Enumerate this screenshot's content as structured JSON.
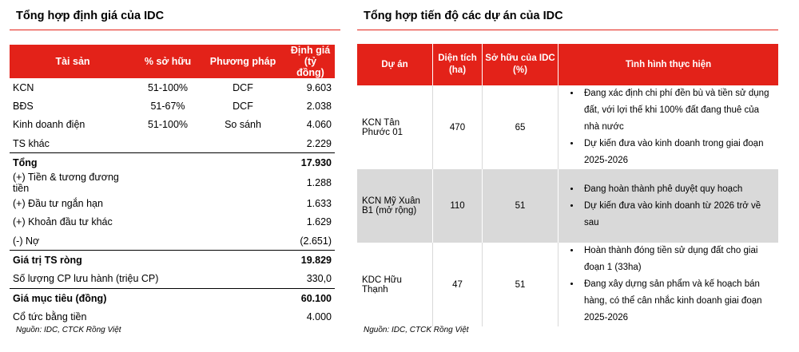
{
  "left": {
    "title": "Tổng hợp định giá của IDC",
    "headers": [
      "Tài sản",
      "% sở hữu",
      "Phương pháp",
      "Định giá (tỷ đồng)"
    ],
    "rows": [
      {
        "asset": "KCN",
        "own": "51-100%",
        "method": "DCF",
        "value": "9.603"
      },
      {
        "asset": "BĐS",
        "own": "51-67%",
        "method": "DCF",
        "value": "2.038"
      },
      {
        "asset": "Kinh doanh điện",
        "own": "51-100%",
        "method": "So sánh",
        "value": "4.060"
      },
      {
        "asset": "TS khác",
        "own": "",
        "method": "",
        "value": "2.229"
      },
      {
        "asset": "Tổng",
        "own": "",
        "method": "",
        "value": "17.930"
      },
      {
        "asset": "(+) Tiền & tương đương tiền",
        "own": "",
        "method": "",
        "value": "1.288"
      },
      {
        "asset": "(+) Đầu tư ngắn hạn",
        "own": "",
        "method": "",
        "value": "1.633"
      },
      {
        "asset": "(+) Khoản đầu tư khác",
        "own": "",
        "method": "",
        "value": "1.629"
      },
      {
        "asset": "(-) Nợ",
        "own": "",
        "method": "",
        "value": "(2.651)"
      },
      {
        "asset": "Giá trị TS ròng",
        "own": "",
        "method": "",
        "value": "19.829"
      },
      {
        "asset": "Số lượng CP lưu hành (triệu CP)",
        "own": "",
        "method": "",
        "value": "330,0"
      },
      {
        "asset": "Giá mục tiêu (đồng)",
        "own": "",
        "method": "",
        "value": "60.100"
      },
      {
        "asset": "Cổ tức bằng tiền",
        "own": "",
        "method": "",
        "value": "4.000"
      }
    ],
    "source": "Nguồn: IDC, CTCK Rồng Việt"
  },
  "right": {
    "title": "Tổng hợp tiến độ các dự án của IDC",
    "headers": [
      "Dự án",
      "Diện tích (ha)",
      "Sở hữu của IDC (%)",
      "Tình hình thực hiện"
    ],
    "rows": [
      {
        "project": "KCN Tân Phước 01",
        "area": "470",
        "own": "65",
        "status": [
          "Đang xác định chi phí đền bù và tiền sử dụng đất, với lợi thế khi 100% đất đang thuê của nhà nước",
          "Dự kiến đưa vào kinh doanh trong giai đoạn 2025-2026"
        ]
      },
      {
        "project": "KCN Mỹ Xuân B1 (mở rộng)",
        "area": "110",
        "own": "51",
        "status": [
          "Đang hoàn thành phê duyệt quy hoạch",
          "Dự kiến đưa vào kinh doanh từ 2026 trở về sau"
        ]
      },
      {
        "project": "KDC Hữu Thạnh",
        "area": "47",
        "own": "51",
        "status": [
          "Hoàn thành đóng tiền sử dụng đất cho giai đoạn 1 (33ha)",
          "Đang xây dựng sản phẩm và kế hoạch bán hàng, có thể cân nhắc kinh doanh giai đoạn 2025-2026"
        ]
      }
    ],
    "source": "Nguồn: IDC, CTCK Rồng Việt"
  }
}
